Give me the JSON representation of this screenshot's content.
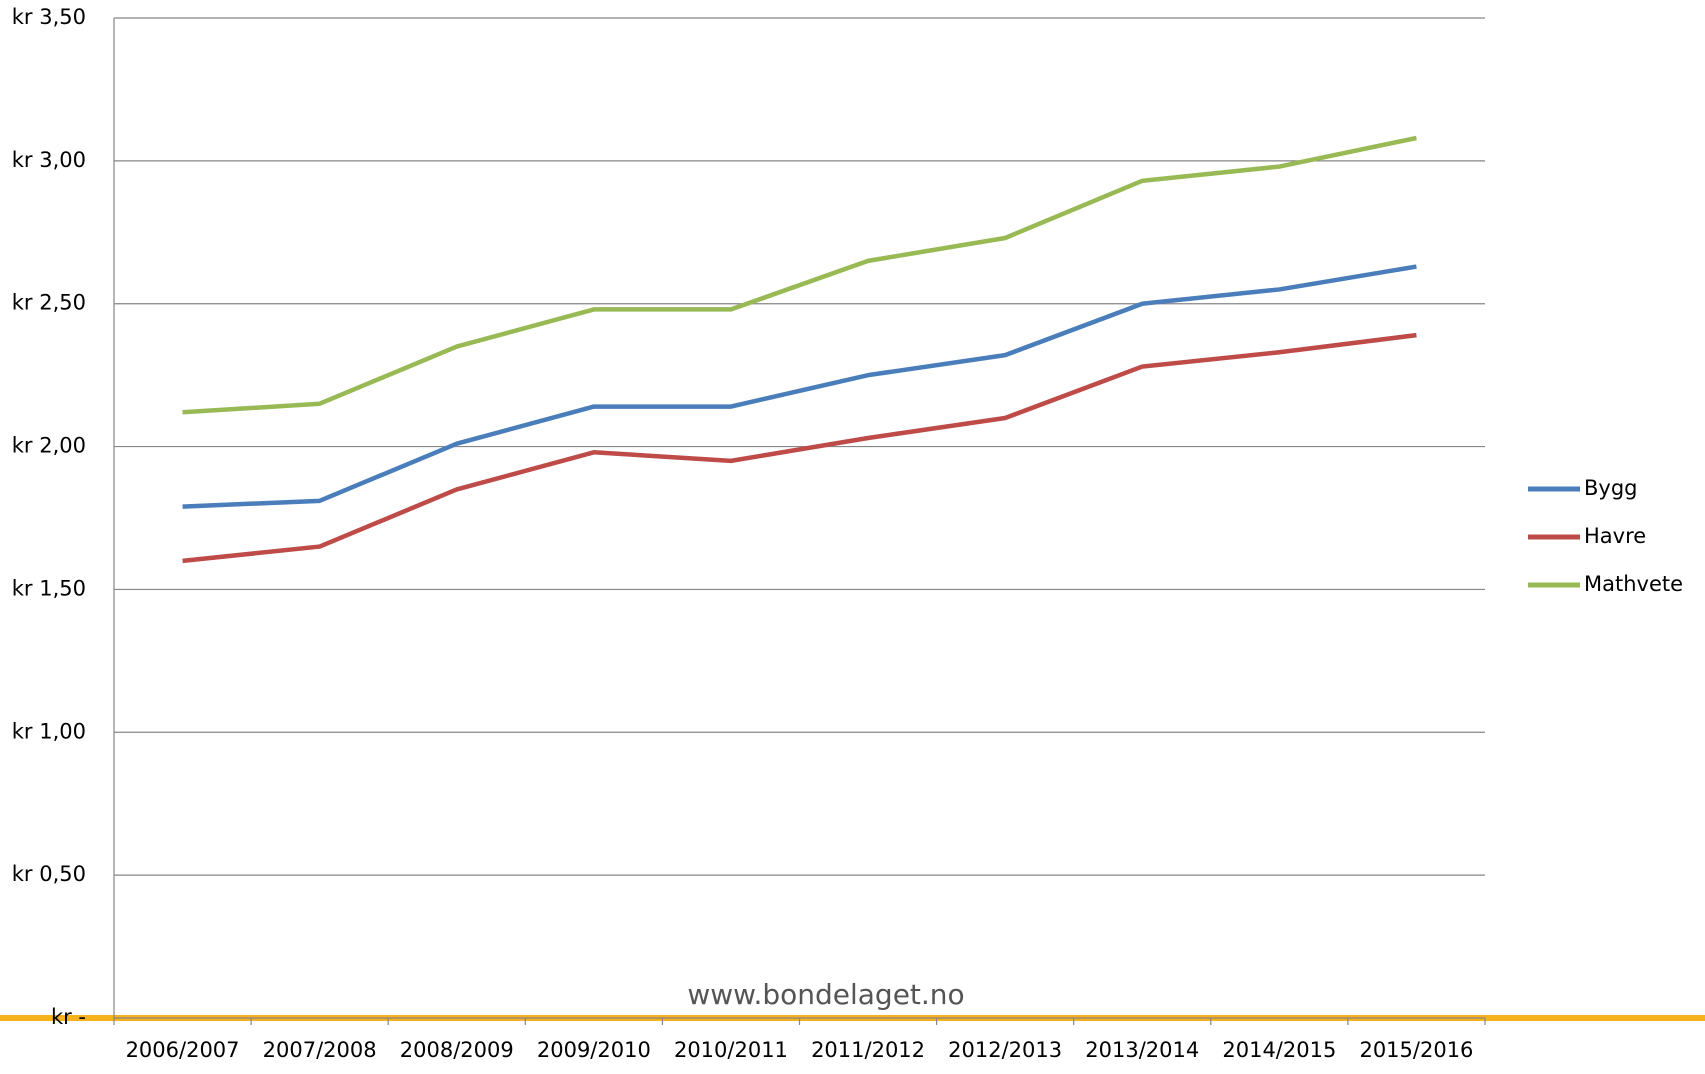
{
  "chart_data": {
    "type": "line",
    "categories": [
      "2006/2007",
      "2007/2008",
      "2008/2009",
      "2009/2010",
      "2010/2011",
      "2011/2012",
      "2012/2013",
      "2013/2014",
      "2014/2015",
      "2015/2016"
    ],
    "series": [
      {
        "name": "Bygg",
        "color": "#4a7ebb",
        "values": [
          1.79,
          1.81,
          2.01,
          2.14,
          2.14,
          2.25,
          2.32,
          2.5,
          2.55,
          2.63
        ]
      },
      {
        "name": "Havre",
        "color": "#be4b48",
        "values": [
          1.6,
          1.65,
          1.85,
          1.98,
          1.95,
          2.03,
          2.1,
          2.28,
          2.33,
          2.39
        ]
      },
      {
        "name": "Mathvete",
        "color": "#98b954",
        "values": [
          2.12,
          2.15,
          2.35,
          2.48,
          2.48,
          2.65,
          2.73,
          2.93,
          2.98,
          3.08
        ]
      }
    ],
    "ylim": [
      0,
      3.5
    ],
    "yticks": [
      {
        "value": 0,
        "label": "kr -"
      },
      {
        "value": 0.5,
        "label": "kr 0,50"
      },
      {
        "value": 1,
        "label": "kr 1,00"
      },
      {
        "value": 1.5,
        "label": "kr 1,50"
      },
      {
        "value": 2,
        "label": "kr 2,00"
      },
      {
        "value": 2.5,
        "label": "kr 2,50"
      },
      {
        "value": 3,
        "label": "kr 3,00"
      },
      {
        "value": 3.5,
        "label": "kr 3,50"
      }
    ],
    "grid": true,
    "legend": "right",
    "annotation": "www.bondelaget.no"
  }
}
